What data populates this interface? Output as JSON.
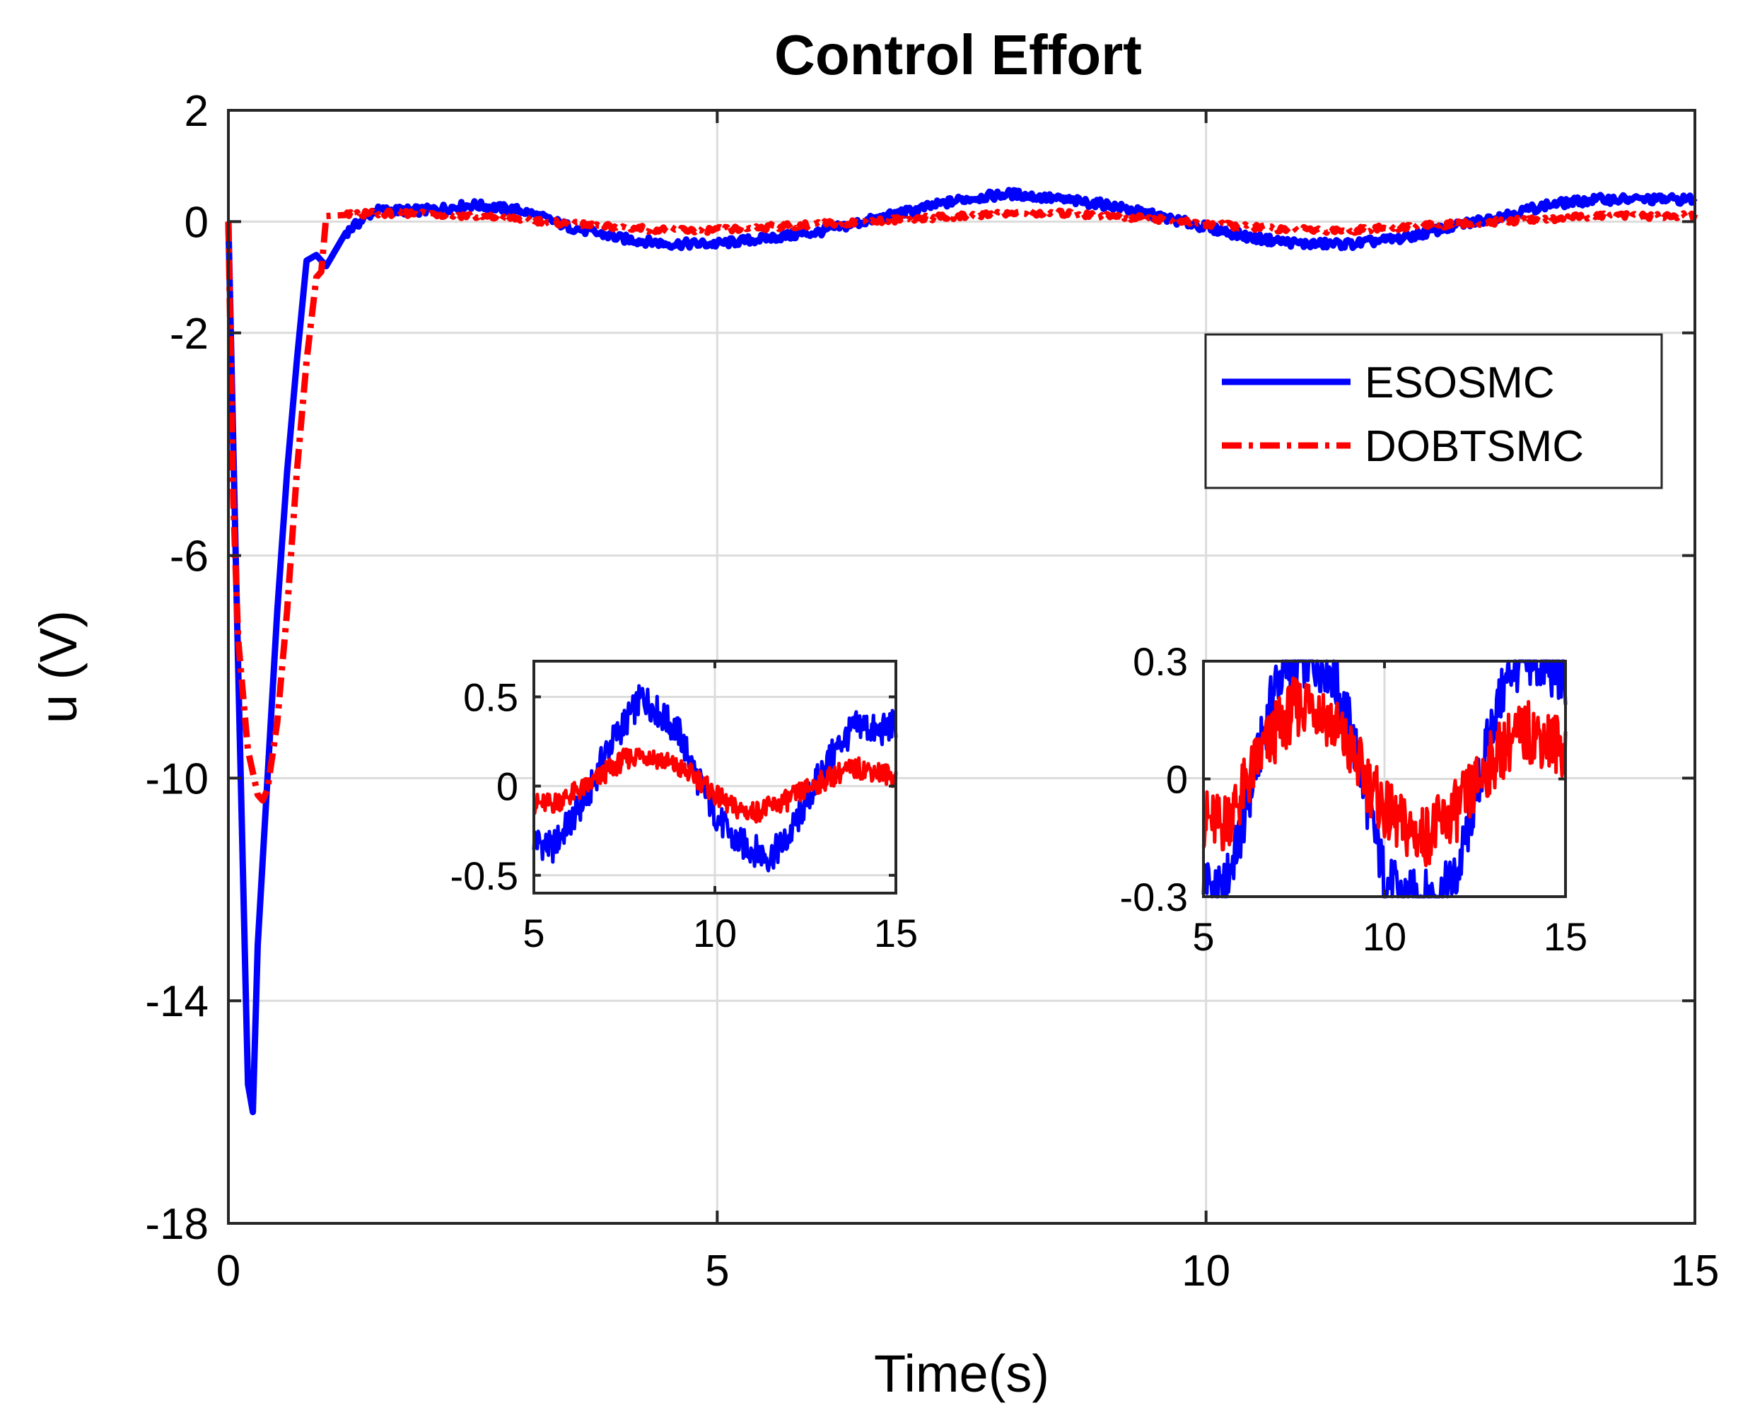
{
  "colors": {
    "esosmc": "#0000ff",
    "dobtsmc": "#ff0000"
  },
  "chart_data": [
    {
      "type": "line",
      "role": "main",
      "title": "Control Effort",
      "xlabel": "Time(s)",
      "ylabel": "u (V)",
      "xlim": [
        0,
        15
      ],
      "ylim": [
        -18,
        2
      ],
      "xticks": [
        0,
        5,
        10,
        15
      ],
      "xtick_labels": [
        "0",
        "5",
        "10",
        "15"
      ],
      "yticks": [
        2,
        0,
        -2,
        -6,
        -10,
        -14,
        -18
      ],
      "ytick_labels": [
        "2",
        "0",
        "-2",
        "-6",
        "-10",
        "-14",
        "-18"
      ],
      "grid": true,
      "legend": {
        "position": "top-right",
        "entries": [
          "ESOSMC",
          "DOBTSMC"
        ]
      },
      "series": [
        {
          "name": "ESOSMC",
          "style": "solid",
          "x": [
            0,
            0.1,
            0.2,
            0.25,
            0.3,
            0.4,
            0.5,
            0.6,
            0.7,
            0.8,
            0.9,
            1.0,
            1.2,
            1.5,
            2,
            2.5,
            3,
            3.5,
            4,
            4.5,
            5,
            5.5,
            6,
            6.5,
            7,
            7.5,
            8,
            8.5,
            9,
            9.5,
            10,
            10.5,
            11,
            11.5,
            12,
            12.5,
            13,
            13.5,
            14,
            14.5,
            15
          ],
          "y": [
            0,
            -8,
            -15.5,
            -16,
            -13,
            -10,
            -7,
            -4.5,
            -2.5,
            -0.7,
            -0.6,
            -0.8,
            -0.2,
            0.2,
            0.2,
            0.3,
            0.2,
            -0.1,
            -0.3,
            -0.4,
            -0.4,
            -0.3,
            -0.2,
            0,
            0.2,
            0.4,
            0.5,
            0.4,
            0.3,
            0.1,
            -0.1,
            -0.3,
            -0.4,
            -0.4,
            -0.3,
            -0.1,
            0.1,
            0.3,
            0.4,
            0.4,
            0.4
          ]
        },
        {
          "name": "DOBTSMC",
          "style": "dash-dot",
          "x": [
            0,
            0.05,
            0.1,
            0.2,
            0.3,
            0.35,
            0.4,
            0.5,
            0.6,
            0.7,
            0.8,
            0.9,
            0.95,
            1.0,
            1.5,
            2,
            2.5,
            3,
            3.5,
            4,
            4.5,
            5,
            5.5,
            6,
            6.5,
            7,
            7.5,
            8,
            8.5,
            9,
            9.5,
            10,
            10.5,
            11,
            11.5,
            12,
            12.5,
            13,
            13.5,
            14,
            14.5,
            15
          ],
          "y": [
            0,
            -5,
            -7.5,
            -9.5,
            -10.3,
            -10.4,
            -10.2,
            -9,
            -7,
            -4.5,
            -2.5,
            -1,
            -0.9,
            0.1,
            0.15,
            0.15,
            0.1,
            0.05,
            -0.05,
            -0.1,
            -0.15,
            -0.15,
            -0.1,
            -0.05,
            0,
            0.05,
            0.1,
            0.15,
            0.15,
            0.1,
            0.05,
            -0.05,
            -0.1,
            -0.15,
            -0.15,
            -0.1,
            -0.05,
            0,
            0.05,
            0.1,
            0.1,
            0.1
          ]
        }
      ]
    },
    {
      "type": "line",
      "role": "inset-left",
      "xlim": [
        5,
        15
      ],
      "ylim": [
        -0.6,
        0.7
      ],
      "xticks": [
        5,
        10,
        15
      ],
      "xtick_labels": [
        "5",
        "10",
        "15"
      ],
      "yticks": [
        0.5,
        0,
        -0.5
      ],
      "ytick_labels": [
        "0.5",
        "0",
        "-0.5"
      ],
      "series": [
        {
          "name": "ESOSMC",
          "x": [
            5,
            5.5,
            6,
            6.5,
            7,
            7.5,
            8,
            8.5,
            9,
            9.5,
            10,
            10.5,
            11,
            11.5,
            12,
            12.5,
            13,
            13.5,
            14,
            14.5,
            15
          ],
          "y": [
            -0.3,
            -0.35,
            -0.2,
            -0.05,
            0.2,
            0.35,
            0.5,
            0.4,
            0.3,
            0.05,
            -0.15,
            -0.3,
            -0.35,
            -0.4,
            -0.3,
            -0.1,
            0.1,
            0.25,
            0.35,
            0.3,
            0.35
          ]
        },
        {
          "name": "DOBTSMC",
          "x": [
            5,
            5.5,
            6,
            6.5,
            7,
            7.5,
            8,
            8.5,
            9,
            9.5,
            10,
            10.5,
            11,
            11.5,
            12,
            12.5,
            13,
            13.5,
            14,
            14.5,
            15
          ],
          "y": [
            -0.1,
            -0.1,
            -0.05,
            0,
            0.08,
            0.15,
            0.18,
            0.15,
            0.1,
            0.05,
            -0.05,
            -0.12,
            -0.15,
            -0.12,
            -0.08,
            -0.02,
            0.03,
            0.08,
            0.1,
            0.08,
            0.05
          ]
        }
      ]
    },
    {
      "type": "line",
      "role": "inset-right",
      "xlim": [
        5,
        15
      ],
      "ylim": [
        -0.3,
        0.3
      ],
      "xticks": [
        5,
        10,
        15
      ],
      "xtick_labels": [
        "5",
        "10",
        "15"
      ],
      "yticks": [
        0.3,
        0,
        -0.3
      ],
      "ytick_labels": [
        "0.3",
        "0",
        "-0.3"
      ],
      "series": [
        {
          "name": "ESOSMC",
          "x": [
            5,
            5.5,
            6,
            6.5,
            7,
            7.5,
            8,
            8.5,
            9,
            9.5,
            10,
            10.5,
            11,
            11.5,
            12,
            12.5,
            13,
            13.5,
            14,
            14.5,
            15
          ],
          "y": [
            -0.25,
            -0.3,
            -0.15,
            0.05,
            0.25,
            0.3,
            0.3,
            0.28,
            0.15,
            -0.05,
            -0.25,
            -0.3,
            -0.3,
            -0.3,
            -0.25,
            -0.05,
            0.15,
            0.28,
            0.3,
            0.28,
            0.25
          ]
        },
        {
          "name": "DOBTSMC",
          "x": [
            5,
            5.5,
            6,
            6.5,
            7,
            7.5,
            8,
            8.5,
            9,
            9.5,
            10,
            10.5,
            11,
            11.5,
            12,
            12.5,
            13,
            13.5,
            14,
            14.5,
            15
          ],
          "y": [
            -0.1,
            -0.12,
            -0.05,
            0.05,
            0.12,
            0.18,
            0.2,
            0.15,
            0.08,
            0,
            -0.08,
            -0.12,
            -0.15,
            -0.12,
            -0.08,
            -0.02,
            0.05,
            0.1,
            0.12,
            0.1,
            0.08
          ]
        }
      ]
    }
  ]
}
